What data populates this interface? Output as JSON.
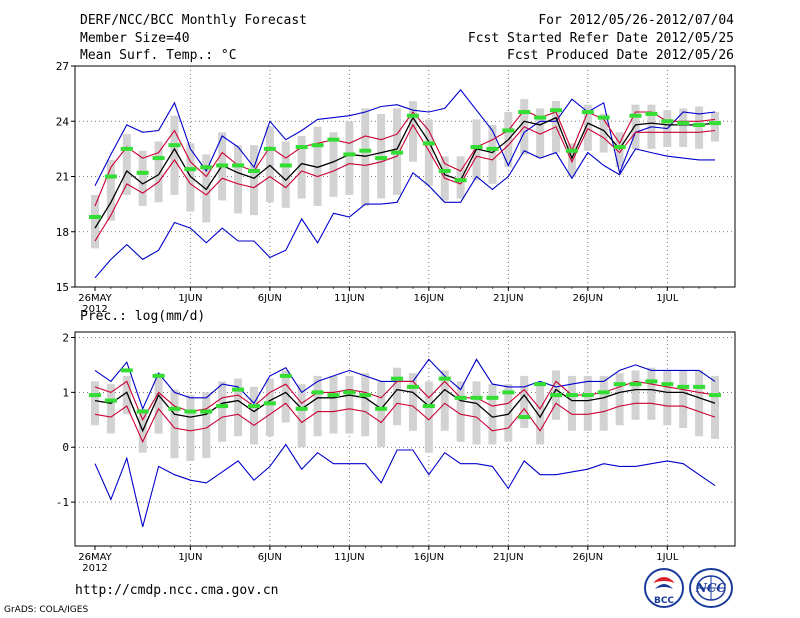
{
  "header": {
    "title": "DERF/NCC/BCC Monthly Forecast",
    "member_size": "Member Size=40",
    "variable": "Mean Surf. Temp.: °C",
    "period": "For 2012/05/26-2012/07/04",
    "fcst_started": "Fcst Started Refer Date 2012/05/25",
    "fcst_produced": "Fcst Produced Date 2012/05/26"
  },
  "footer": {
    "url": "http://cmdp.ncc.cma.gov.cn",
    "grads_credit": "GrADS: COLA/IGES",
    "logo_bcc": "BCC",
    "logo_ncc": "NCC"
  },
  "colors": {
    "max_min": "#0000cc",
    "std_band": "#cc0033",
    "ens_mean": "#000000",
    "control": "#33dd33",
    "spread_bar": "#d2d2d2",
    "grid": "#555555"
  },
  "chart_data": [
    {
      "type": "line",
      "title": "Mean Surf. Temp.: °C",
      "ylim": [
        15,
        27
      ],
      "yticks": [
        15,
        18,
        21,
        24,
        27
      ],
      "x_tick_labels": [
        "26MAY",
        "1JUN",
        "6JUN",
        "11JUN",
        "16JUN",
        "21JUN",
        "26JUN",
        "1JUL"
      ],
      "x_tick_days": [
        1,
        7,
        12,
        17,
        22,
        27,
        32,
        37
      ],
      "year_label": "2012",
      "days": [
        1,
        2,
        3,
        4,
        5,
        6,
        7,
        8,
        9,
        10,
        11,
        12,
        13,
        14,
        15,
        16,
        17,
        18,
        19,
        20,
        21,
        22,
        23,
        24,
        25,
        26,
        27,
        28,
        29,
        30,
        31,
        32,
        33,
        34,
        35,
        36,
        37,
        38,
        39,
        40
      ],
      "series": [
        {
          "name": "ensemble_max",
          "color": "#0000cc",
          "values": [
            20.5,
            22.2,
            23.8,
            23.4,
            23.5,
            25.0,
            22.5,
            21.3,
            23.2,
            22.6,
            21.5,
            24.0,
            23.0,
            23.5,
            24.1,
            24.2,
            24.3,
            24.5,
            24.8,
            24.9,
            24.6,
            24.5,
            24.7,
            25.7,
            24.6,
            23.5,
            21.6,
            23.4,
            24.0,
            24.0,
            25.2,
            24.5,
            25.0,
            21.2,
            23.4,
            23.7,
            23.6,
            24.5,
            24.4,
            24.5
          ]
        },
        {
          "name": "mean_plus_std",
          "color": "#cc0033",
          "values": [
            19.4,
            21.5,
            22.6,
            22.0,
            22.3,
            23.5,
            21.8,
            21.0,
            22.3,
            21.6,
            21.3,
            22.6,
            22.0,
            22.6,
            22.8,
            23.0,
            22.8,
            23.2,
            23.0,
            23.3,
            24.5,
            23.5,
            21.7,
            21.3,
            22.6,
            23.0,
            23.5,
            24.6,
            24.2,
            24.5,
            22.4,
            24.5,
            24.1,
            22.8,
            24.5,
            24.5,
            24.0,
            24.0,
            24.0,
            24.1
          ]
        },
        {
          "name": "ensemble_mean",
          "color": "#000000",
          "values": [
            18.2,
            19.6,
            21.3,
            20.6,
            21.1,
            22.5,
            21.0,
            20.3,
            21.6,
            21.2,
            20.9,
            21.6,
            20.8,
            21.7,
            21.5,
            21.8,
            22.2,
            22.1,
            22.3,
            22.5,
            24.2,
            22.9,
            21.1,
            20.8,
            22.5,
            22.3,
            23.0,
            24.0,
            23.8,
            24.2,
            22.0,
            23.9,
            23.5,
            22.5,
            23.8,
            23.9,
            23.8,
            23.8,
            23.8,
            23.9
          ]
        },
        {
          "name": "mean_minus_std",
          "color": "#cc0033",
          "values": [
            17.5,
            18.9,
            20.6,
            20.1,
            20.7,
            21.9,
            20.6,
            20.0,
            20.9,
            20.6,
            20.4,
            21.0,
            20.4,
            21.3,
            21.0,
            21.3,
            21.7,
            21.6,
            21.8,
            22.1,
            23.8,
            22.4,
            20.9,
            20.6,
            22.1,
            21.9,
            22.7,
            23.7,
            23.3,
            23.7,
            21.8,
            23.6,
            23.1,
            22.3,
            23.4,
            23.4,
            23.4,
            23.4,
            23.4,
            23.5
          ]
        },
        {
          "name": "ensemble_min",
          "color": "#0000cc",
          "values": [
            15.5,
            16.5,
            17.3,
            16.5,
            17.0,
            18.5,
            18.2,
            17.4,
            18.2,
            17.5,
            17.5,
            16.6,
            17.0,
            18.7,
            17.4,
            19.0,
            18.8,
            19.5,
            19.5,
            19.6,
            21.2,
            20.5,
            19.6,
            19.6,
            21.0,
            20.3,
            21.0,
            22.4,
            22.0,
            22.3,
            20.9,
            22.3,
            21.6,
            21.1,
            22.5,
            22.3,
            22.1,
            22.0,
            21.9,
            21.9
          ]
        },
        {
          "name": "control_run",
          "color": "#33dd33",
          "values": [
            18.8,
            21.0,
            22.5,
            21.2,
            22.0,
            22.7,
            21.4,
            21.5,
            21.6,
            21.6,
            21.3,
            22.5,
            21.6,
            22.6,
            22.7,
            23.0,
            22.2,
            22.4,
            22.0,
            22.3,
            24.3,
            22.8,
            21.3,
            20.8,
            22.6,
            22.5,
            23.5,
            24.5,
            24.2,
            24.6,
            22.4,
            24.5,
            24.2,
            22.6,
            24.3,
            24.4,
            24.0,
            23.9,
            23.8,
            23.9
          ]
        }
      ],
      "spread_bars": {
        "lo": [
          17.1,
          18.6,
          20.0,
          19.4,
          19.6,
          20.0,
          19.1,
          18.5,
          19.7,
          19.0,
          18.9,
          19.6,
          19.3,
          19.8,
          19.4,
          19.9,
          20.0,
          19.4,
          19.8,
          20.0,
          21.8,
          20.5,
          19.7,
          19.8,
          20.8,
          20.6,
          21.5,
          22.2,
          22.0,
          22.3,
          21.0,
          22.4,
          22.3,
          21.5,
          22.5,
          22.5,
          22.6,
          22.6,
          22.5,
          22.9
        ],
        "hi": [
          20.0,
          21.9,
          23.3,
          22.4,
          22.9,
          24.3,
          22.8,
          22.2,
          23.4,
          22.7,
          22.7,
          23.7,
          22.9,
          23.2,
          23.7,
          23.4,
          24.0,
          24.7,
          24.4,
          24.7,
          25.1,
          24.1,
          22.1,
          22.1,
          24.1,
          23.8,
          24.5,
          25.2,
          24.7,
          25.1,
          22.8,
          24.9,
          24.4,
          23.4,
          24.9,
          24.9,
          24.6,
          24.7,
          24.8,
          24.5
        ]
      }
    },
    {
      "type": "line",
      "title": "Prec.: log(mm/d)",
      "ylim": [
        -1.8,
        2.1
      ],
      "yticks": [
        -1,
        0,
        1,
        2
      ],
      "x_tick_labels": [
        "26MAY",
        "1JUN",
        "6JUN",
        "11JUN",
        "16JUN",
        "21JUN",
        "26JUN",
        "1JUL"
      ],
      "x_tick_days": [
        1,
        7,
        12,
        17,
        22,
        27,
        32,
        37
      ],
      "year_label": "2012",
      "days": [
        1,
        2,
        3,
        4,
        5,
        6,
        7,
        8,
        9,
        10,
        11,
        12,
        13,
        14,
        15,
        16,
        17,
        18,
        19,
        20,
        21,
        22,
        23,
        24,
        25,
        26,
        27,
        28,
        29,
        30,
        31,
        32,
        33,
        34,
        35,
        36,
        37,
        38,
        39,
        40
      ],
      "series": [
        {
          "name": "ensemble_max",
          "color": "#0000cc",
          "values": [
            1.4,
            1.2,
            1.55,
            0.7,
            1.35,
            1.0,
            0.9,
            0.9,
            1.15,
            1.1,
            0.8,
            1.3,
            1.45,
            1.0,
            1.2,
            1.3,
            1.4,
            1.3,
            1.2,
            1.2,
            1.2,
            1.6,
            1.3,
            1.05,
            1.6,
            1.15,
            1.1,
            1.1,
            1.2,
            1.1,
            1.15,
            1.2,
            1.2,
            1.4,
            1.5,
            1.4,
            1.4,
            1.4,
            1.4,
            1.2
          ]
        },
        {
          "name": "mean_plus_std",
          "color": "#cc0033",
          "values": [
            1.1,
            1.0,
            1.2,
            0.5,
            1.0,
            0.75,
            0.65,
            0.7,
            0.9,
            0.95,
            0.75,
            1.0,
            1.15,
            0.8,
            1.0,
            1.0,
            1.05,
            1.0,
            0.9,
            1.2,
            1.2,
            0.9,
            1.2,
            0.9,
            0.9,
            0.75,
            0.8,
            1.05,
            0.7,
            1.2,
            0.95,
            0.95,
            1.0,
            1.1,
            1.2,
            1.15,
            1.1,
            1.05,
            1.0,
            0.95
          ]
        },
        {
          "name": "ensemble_mean",
          "color": "#000000",
          "values": [
            0.85,
            0.8,
            1.0,
            0.3,
            0.95,
            0.6,
            0.55,
            0.6,
            0.8,
            0.85,
            0.65,
            0.85,
            1.0,
            0.7,
            0.9,
            0.9,
            0.95,
            0.9,
            0.7,
            1.05,
            1.0,
            0.75,
            1.05,
            0.85,
            0.8,
            0.55,
            0.6,
            0.95,
            0.55,
            1.05,
            0.85,
            0.85,
            0.9,
            1.0,
            1.05,
            1.05,
            1.0,
            1.0,
            0.9,
            0.8
          ]
        },
        {
          "name": "mean_minus_std",
          "color": "#cc0033",
          "values": [
            0.6,
            0.55,
            0.75,
            0.1,
            0.7,
            0.35,
            0.3,
            0.35,
            0.55,
            0.6,
            0.4,
            0.6,
            0.8,
            0.45,
            0.65,
            0.65,
            0.7,
            0.65,
            0.45,
            0.8,
            0.75,
            0.5,
            0.8,
            0.6,
            0.55,
            0.3,
            0.35,
            0.7,
            0.3,
            0.8,
            0.6,
            0.6,
            0.65,
            0.75,
            0.8,
            0.8,
            0.75,
            0.75,
            0.65,
            0.55
          ]
        },
        {
          "name": "ensemble_min",
          "color": "#0000cc",
          "values": [
            -0.3,
            -0.95,
            -0.2,
            -1.45,
            -0.35,
            -0.5,
            -0.6,
            -0.65,
            -0.45,
            -0.25,
            -0.6,
            -0.35,
            0.05,
            -0.4,
            -0.1,
            -0.3,
            -0.3,
            -0.3,
            -0.65,
            -0.05,
            -0.05,
            -0.5,
            -0.1,
            -0.3,
            -0.3,
            -0.35,
            -0.75,
            -0.25,
            -0.5,
            -0.5,
            -0.45,
            -0.4,
            -0.3,
            -0.35,
            -0.35,
            -0.3,
            -0.25,
            -0.3,
            -0.5,
            -0.7
          ]
        },
        {
          "name": "control_run",
          "color": "#33dd33",
          "values": [
            0.95,
            0.85,
            1.4,
            0.65,
            1.3,
            0.7,
            0.65,
            0.65,
            0.75,
            1.05,
            0.75,
            0.8,
            1.3,
            0.7,
            1.0,
            0.95,
            1.0,
            0.95,
            0.7,
            1.25,
            1.1,
            0.75,
            1.25,
            0.9,
            0.9,
            0.9,
            1.0,
            0.55,
            1.15,
            0.95,
            0.95,
            0.95,
            1.0,
            1.15,
            1.15,
            1.2,
            1.15,
            1.1,
            1.1,
            0.95
          ]
        }
      ],
      "spread_bars": {
        "lo": [
          0.4,
          0.25,
          0.6,
          -0.1,
          0.25,
          -0.2,
          -0.25,
          -0.2,
          0.1,
          0.2,
          0.05,
          0.2,
          0.45,
          0.0,
          0.2,
          0.25,
          0.25,
          0.2,
          0.0,
          0.4,
          0.3,
          -0.1,
          0.3,
          0.1,
          0.05,
          0.05,
          0.1,
          0.35,
          0.05,
          0.5,
          0.3,
          0.3,
          0.3,
          0.4,
          0.5,
          0.5,
          0.4,
          0.35,
          0.2,
          0.15
        ],
        "hi": [
          1.2,
          1.15,
          1.3,
          0.7,
          1.35,
          1.05,
          0.95,
          1.0,
          1.2,
          1.25,
          1.1,
          1.25,
          1.4,
          1.15,
          1.3,
          1.3,
          1.3,
          1.35,
          1.2,
          1.45,
          1.35,
          1.2,
          1.4,
          1.2,
          1.2,
          1.15,
          1.15,
          1.3,
          1.15,
          1.4,
          1.3,
          1.3,
          1.3,
          1.35,
          1.4,
          1.45,
          1.4,
          1.4,
          1.4,
          1.3
        ]
      }
    }
  ]
}
